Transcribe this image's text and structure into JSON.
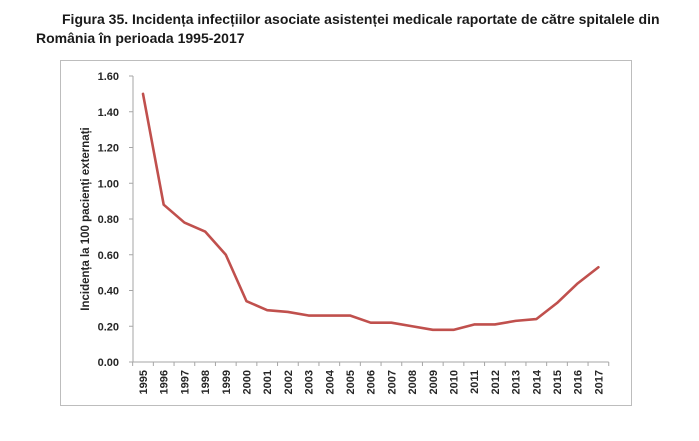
{
  "figure": {
    "title_line1": "Figura 35. Incidența infecțiilor asociate asistenței medicale raportate de către spitalele din",
    "title_line2": "România în perioada 1995-2017"
  },
  "chart_data": {
    "type": "line",
    "title": "",
    "xlabel": "",
    "ylabel": "Incidența la 100 pacienți externați",
    "categories": [
      "1995",
      "1996",
      "1997",
      "1998",
      "1999",
      "2000",
      "2001",
      "2002",
      "2003",
      "2004",
      "2005",
      "2006",
      "2007",
      "2008",
      "2009",
      "2010",
      "2011",
      "2012",
      "2013",
      "2014",
      "2015",
      "2016",
      "2017"
    ],
    "series": [
      {
        "color": "#c0504d",
        "values": [
          1.5,
          0.88,
          0.78,
          0.73,
          0.6,
          0.34,
          0.29,
          0.28,
          0.26,
          0.26,
          0.26,
          0.22,
          0.22,
          0.2,
          0.18,
          0.18,
          0.21,
          0.21,
          0.23,
          0.24,
          0.33,
          0.44,
          0.53
        ]
      }
    ],
    "ylim": [
      0,
      1.6
    ],
    "yticks": [
      "0.00",
      "0.20",
      "0.40",
      "0.60",
      "0.80",
      "1.00",
      "1.20",
      "1.40",
      "1.60"
    ],
    "grid": false,
    "legend": "none"
  }
}
